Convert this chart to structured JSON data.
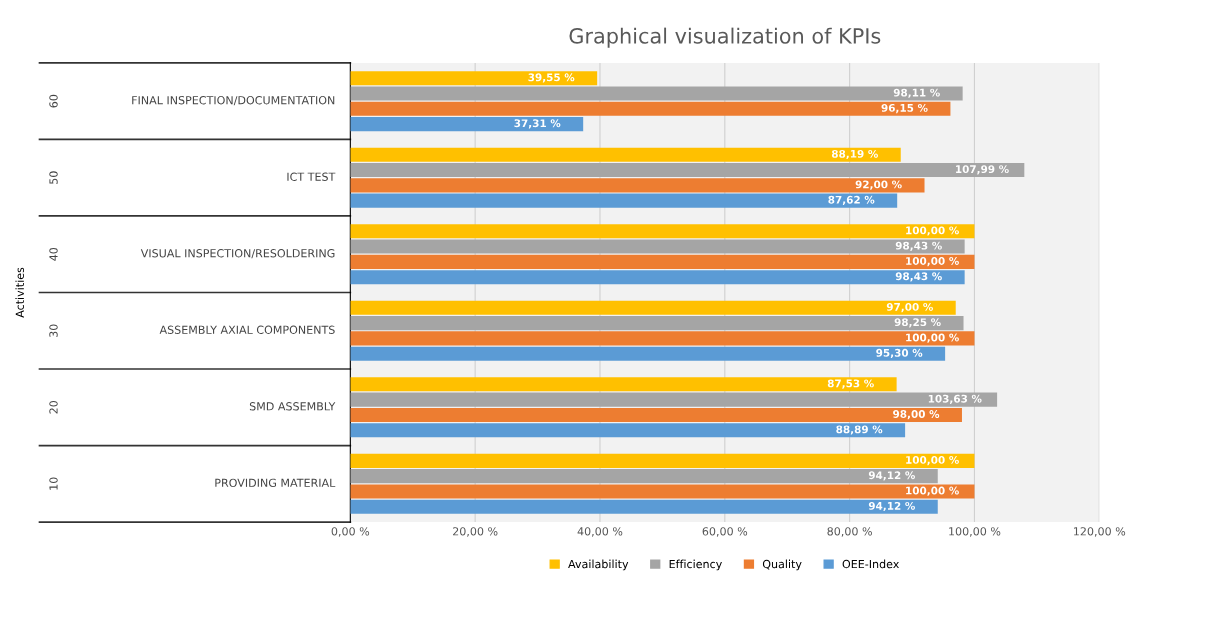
{
  "chart_data": {
    "type": "bar",
    "orientation": "horizontal",
    "title": "Graphical visualization of KPIs",
    "annotations": [
      "Activities",
      "60",
      "50",
      "40",
      "30",
      "20",
      "10"
    ],
    "categories": [
      "FINAL INSPECTION/DOCUMENTATION",
      "ICT TEST",
      "VISUAL INSPECTION/RESOLDERING",
      "ASSEMBLY AXIAL COMPONENTS",
      "SMD ASSEMBLY",
      "PROVIDING MATERIAL"
    ],
    "series": [
      {
        "name": "Availability",
        "color": "#ffc000",
        "values": [
          39.55,
          88.19,
          100.0,
          97.0,
          87.53,
          100.0
        ],
        "value_labels": [
          "39,55 %",
          "88,19 %",
          "100,00 %",
          "97,00 %",
          "87,53 %",
          "100,00 %"
        ]
      },
      {
        "name": "Efficiency",
        "color": "#a5a5a5",
        "values": [
          98.11,
          107.99,
          98.43,
          98.25,
          103.63,
          94.12
        ],
        "value_labels": [
          "98,11 %",
          "107,99 %",
          "98,43 %",
          "98,25 %",
          "103,63 %",
          "94,12 %"
        ]
      },
      {
        "name": "Quality",
        "color": "#ed7d31",
        "values": [
          96.15,
          92.0,
          100.0,
          100.0,
          98.0,
          100.0
        ],
        "value_labels": [
          "96,15 %",
          "92,00 %",
          "100,00 %",
          "100,00 %",
          "98,00 %",
          "100,00 %"
        ]
      },
      {
        "name": "OEE-Index",
        "color": "#5b9bd5",
        "values": [
          37.31,
          87.62,
          98.43,
          95.3,
          88.89,
          94.12
        ],
        "value_labels": [
          "37,31 %",
          "87,62 %",
          "98,43 %",
          "95,30 %",
          "88,89 %",
          "94,12 %"
        ]
      }
    ],
    "xlim": [
      0,
      120
    ],
    "xticks": [
      {
        "value": 0,
        "label": "0,00 %"
      },
      {
        "value": 20,
        "label": "20,00 %"
      },
      {
        "value": 40,
        "label": "40,00 %"
      },
      {
        "value": 60,
        "label": "60,00 %"
      },
      {
        "value": 80,
        "label": "80,00 %"
      },
      {
        "value": 100,
        "label": "100,00 %"
      },
      {
        "value": 120,
        "label": "120,00 %"
      }
    ],
    "grid": "x",
    "legend": "bottom"
  }
}
